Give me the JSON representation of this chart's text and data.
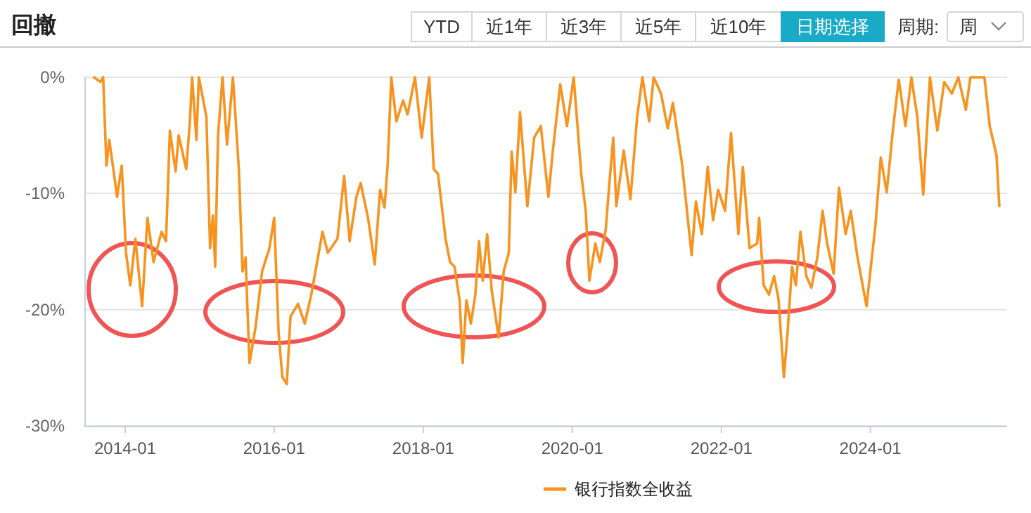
{
  "chart_data": {
    "type": "line",
    "title": "回撤",
    "annotations": [
      "YTD",
      "近1年",
      "近3年",
      "近5年",
      "近10年",
      "日期选择",
      "周期:",
      "周"
    ],
    "xlim": [
      "2013-06-15",
      "2025-11-01"
    ],
    "xticks": [
      "2014-01",
      "2016-01",
      "2018-01",
      "2020-01",
      "2022-01",
      "2024-01"
    ],
    "ylim": [
      -30,
      0
    ],
    "yticks": [
      {
        "value": 0,
        "label": "0%"
      },
      {
        "value": -10,
        "label": "-10%"
      },
      {
        "value": -20,
        "label": "-20%"
      },
      {
        "value": -30,
        "label": "-30%"
      }
    ],
    "grid": "y",
    "legend": "bottom",
    "series": [
      {
        "name": "银行指数全收益",
        "color": "#f7931e",
        "x": [
          "2013-08-01",
          "2013-09-01",
          "2013-09-15",
          "2013-10-01",
          "2013-10-15",
          "2013-11-10",
          "2013-11-22",
          "2013-12-15",
          "2014-01-05",
          "2014-01-26",
          "2014-02-20",
          "2014-03-25",
          "2014-04-20",
          "2014-05-20",
          "2014-06-28",
          "2014-07-20",
          "2014-08-08",
          "2014-09-05",
          "2014-09-20",
          "2014-10-27",
          "2014-11-14",
          "2014-11-25",
          "2014-12-16",
          "2014-12-28",
          "2015-02-03",
          "2015-02-21",
          "2015-03-07",
          "2015-03-18",
          "2015-04-01",
          "2015-04-23",
          "2015-05-15",
          "2015-06-13",
          "2015-07-12",
          "2015-07-30",
          "2015-08-14",
          "2015-09-02",
          "2015-10-01",
          "2015-11-03",
          "2015-12-09",
          "2016-01-01",
          "2016-01-23",
          "2016-02-10",
          "2016-03-03",
          "2016-03-21",
          "2016-04-27",
          "2016-05-30",
          "2016-07-01",
          "2016-08-25",
          "2016-09-20",
          "2016-11-06",
          "2016-12-09",
          "2017-01-05",
          "2017-02-07",
          "2017-02-28",
          "2017-04-05",
          "2017-05-08",
          "2017-06-03",
          "2017-06-25",
          "2017-07-10",
          "2017-07-28",
          "2017-08-22",
          "2017-09-24",
          "2017-10-16",
          "2017-11-21",
          "2017-12-24",
          "2018-01-30",
          "2018-02-21",
          "2018-03-14",
          "2018-04-20",
          "2018-05-12",
          "2018-06-03",
          "2018-06-28",
          "2018-07-13",
          "2018-07-31",
          "2018-08-22",
          "2018-09-13",
          "2018-10-01",
          "2018-10-19",
          "2018-11-10",
          "2018-12-02",
          "2019-01-05",
          "2019-01-30",
          "2019-02-24",
          "2019-03-10",
          "2019-03-28",
          "2019-04-20",
          "2019-05-26",
          "2019-06-28",
          "2019-07-31",
          "2019-09-06",
          "2019-09-28",
          "2019-11-03",
          "2019-12-06",
          "2020-01-08",
          "2020-02-14",
          "2020-03-07",
          "2020-03-25",
          "2020-04-23",
          "2020-05-15",
          "2020-06-13",
          "2020-07-01",
          "2020-07-20",
          "2020-08-04",
          "2020-09-09",
          "2020-10-12",
          "2020-11-14",
          "2020-12-10",
          "2021-01-12",
          "2021-02-03",
          "2021-03-11",
          "2021-04-13",
          "2021-05-08",
          "2021-06-21",
          "2021-08-08",
          "2021-08-29",
          "2021-09-27",
          "2021-10-26",
          "2021-11-21",
          "2021-12-16",
          "2022-01-19",
          "2022-02-17",
          "2022-03-25",
          "2022-04-16",
          "2022-05-19",
          "2022-06-25",
          "2022-07-05",
          "2022-07-27",
          "2022-08-22",
          "2022-09-16",
          "2022-10-08",
          "2022-11-03",
          "2022-11-21",
          "2022-12-13",
          "2023-01-01",
          "2023-01-23",
          "2023-02-21",
          "2023-03-18",
          "2023-04-16",
          "2023-05-12",
          "2023-06-03",
          "2023-07-05",
          "2023-07-31",
          "2023-09-02",
          "2023-09-27",
          "2023-10-30",
          "2023-12-13",
          "2024-01-26",
          "2024-02-21",
          "2024-03-21",
          "2024-04-20",
          "2024-05-19",
          "2024-06-21",
          "2024-07-20",
          "2024-08-18",
          "2024-09-16",
          "2024-10-19",
          "2024-11-24",
          "2024-12-28",
          "2025-02-03",
          "2025-03-07",
          "2025-04-13",
          "2025-05-05",
          "2025-07-13",
          "2025-08-08",
          "2025-09-10",
          "2025-09-24"
        ],
        "values": [
          0,
          -0.4,
          0,
          -7.6,
          -5.4,
          -8.7,
          -10.3,
          -7.6,
          -15.1,
          -17.9,
          -13.9,
          -19.7,
          -12.1,
          -15.9,
          -13.3,
          -14.1,
          -4.6,
          -8.1,
          -5.0,
          -7.9,
          -3.8,
          0,
          -5.4,
          0,
          -3.4,
          -14.7,
          -11.9,
          -16.3,
          -5.0,
          0,
          -5.8,
          0,
          -7.9,
          -16.7,
          -15.5,
          -24.6,
          -21.6,
          -16.7,
          -14.7,
          -12.1,
          -22.0,
          -25.8,
          -26.4,
          -20.6,
          -19.5,
          -21.2,
          -18.7,
          -13.3,
          -15.1,
          -13.9,
          -8.5,
          -14.1,
          -10.3,
          -9.1,
          -12.1,
          -16.1,
          -9.7,
          -11.2,
          -7.6,
          0,
          -3.8,
          -2.0,
          -3.2,
          0,
          -5.2,
          0,
          -7.9,
          -8.3,
          -13.9,
          -15.9,
          -16.3,
          -19.2,
          -24.6,
          -19.2,
          -21.2,
          -18.7,
          -14.1,
          -17.5,
          -13.5,
          -18.3,
          -22.4,
          -16.7,
          -15.1,
          -6.4,
          -9.9,
          -3.0,
          -11.1,
          -5.2,
          -4.2,
          -10.3,
          -6.3,
          -0.6,
          -4.2,
          0,
          -8.3,
          -11.5,
          -17.5,
          -14.3,
          -15.9,
          -13.1,
          -9.1,
          -5.2,
          -11.1,
          -6.3,
          -10.5,
          -3.4,
          0,
          -3.8,
          0,
          -1.4,
          -4.4,
          -2.2,
          -7.3,
          -15.3,
          -10.7,
          -13.5,
          -7.7,
          -12.3,
          -9.7,
          -11.5,
          -4.8,
          -13.5,
          -7.7,
          -14.7,
          -14.3,
          -12.1,
          -17.9,
          -18.7,
          -17.1,
          -19.1,
          -25.8,
          -22.0,
          -16.3,
          -17.9,
          -13.3,
          -17.1,
          -18.1,
          -15.5,
          -11.5,
          -14.3,
          -16.9,
          -9.5,
          -13.5,
          -11.5,
          -15.5,
          -19.7,
          -12.7,
          -6.9,
          -9.9,
          -4.6,
          -0.2,
          -4.2,
          0,
          -3.4,
          -10.1,
          0,
          -4.6,
          -0.4,
          -1.4,
          0,
          -2.8,
          0,
          0,
          -4.2,
          -6.7,
          -11.1
        ]
      }
    ]
  }
}
